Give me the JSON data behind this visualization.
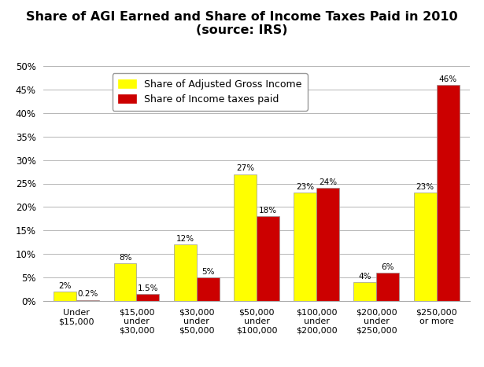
{
  "title_line1": "Share of AGI Earned and Share of Income Taxes Paid in 2010",
  "title_line2": "(source: IRS)",
  "categories": [
    "Under\n$15,000",
    "$15,000\nunder\n$30,000",
    "$30,000\nunder\n$50,000",
    "$50,000\nunder\n$100,000",
    "$100,000\nunder\n$200,000",
    "$200,000\nunder\n$250,000",
    "$250,000\nor more"
  ],
  "agi_values": [
    2,
    8,
    12,
    27,
    23,
    4,
    23
  ],
  "tax_values": [
    0.2,
    1.5,
    5,
    18,
    24,
    6,
    46
  ],
  "agi_labels": [
    "2%",
    "8%",
    "12%",
    "27%",
    "23%",
    "4%",
    "23%"
  ],
  "tax_labels": [
    "0.2%",
    "1.5%",
    "5%",
    "18%",
    "24%",
    "6%",
    "46%"
  ],
  "agi_color": "#FFFF00",
  "tax_color": "#CC0000",
  "agi_legend": "Share of Adjusted Gross Income",
  "tax_legend": "Share of Income taxes paid",
  "ylim": [
    0,
    50
  ],
  "yticks": [
    0,
    5,
    10,
    15,
    20,
    25,
    30,
    35,
    40,
    45,
    50
  ],
  "ytick_labels": [
    "0%",
    "5%",
    "10%",
    "15%",
    "20%",
    "25%",
    "30%",
    "35%",
    "40%",
    "45%",
    "50%"
  ],
  "bar_width": 0.38,
  "background_color": "#ffffff",
  "title_fontsize": 11.5,
  "label_fontsize": 7.5,
  "tick_fontsize": 8.5,
  "legend_fontsize": 9,
  "grid_color": "#aaaaaa"
}
